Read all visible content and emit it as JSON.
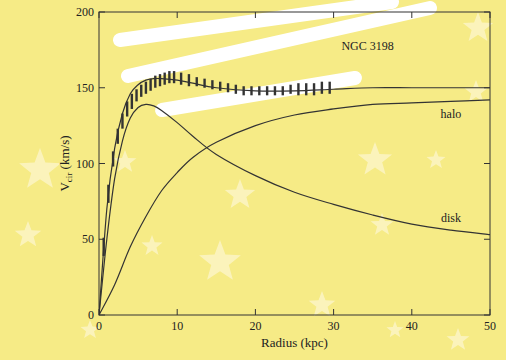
{
  "chart_data": {
    "type": "line",
    "title": "NGC 3198",
    "x_label": "Radius (kpc)",
    "y_label": "Vcir (km/s)",
    "xlim": [
      0,
      50
    ],
    "ylim": [
      0,
      200
    ],
    "xticks": [
      0,
      10,
      20,
      30,
      40,
      50
    ],
    "yticks": [
      0,
      50,
      100,
      150,
      200
    ],
    "grid": false,
    "series": [
      {
        "type": "scatter",
        "marker": "errorbar",
        "color": "#333333",
        "x": [
          0.6,
          1.2,
          1.8,
          2.4,
          3.0,
          3.6,
          4.2,
          4.8,
          5.4,
          6.0,
          6.6,
          7.2,
          7.8,
          8.4,
          9.0,
          9.6,
          10.5,
          11.5,
          12.5,
          13.5,
          14.5,
          15.5,
          16.5,
          17.5,
          18.5,
          19.5,
          20.5,
          21.5,
          22.5,
          23.5,
          24.5,
          25.5,
          26.5,
          27.5,
          28.5,
          29.5
        ],
        "values": [
          45,
          80,
          103,
          118,
          128,
          136,
          141,
          145,
          148,
          150,
          152,
          154,
          155,
          156,
          157,
          157,
          156,
          155,
          154,
          153,
          152,
          151,
          150,
          149,
          148,
          148,
          148,
          148,
          148,
          148,
          149,
          149,
          149,
          149,
          150,
          150
        ],
        "errors": [
          6,
          6,
          5,
          5,
          5,
          5,
          5,
          4,
          4,
          4,
          4,
          4,
          4,
          4,
          4,
          4,
          4,
          4,
          3,
          3,
          3,
          3,
          3,
          3,
          3,
          3,
          3,
          3,
          3,
          3,
          3,
          4,
          4,
          4,
          4,
          4
        ]
      },
      {
        "type": "line",
        "color": "#333333",
        "x": [
          0,
          1,
          2,
          3,
          4,
          5,
          6,
          7,
          8,
          10,
          12,
          15,
          20,
          25,
          30,
          35,
          40,
          45,
          50
        ],
        "values": [
          0,
          70,
          110,
          133,
          146,
          152,
          155,
          156,
          156,
          155,
          153,
          150,
          148,
          148,
          149,
          150,
          150,
          150,
          150
        ]
      },
      {
        "type": "line",
        "name": "halo",
        "color": "#333333",
        "x": [
          0,
          2,
          4,
          6,
          8,
          10,
          12,
          15,
          20,
          25,
          30,
          35,
          40,
          45,
          50
        ],
        "values": [
          0,
          20,
          45,
          65,
          82,
          94,
          104,
          114,
          125,
          132,
          136,
          139,
          140,
          141,
          142
        ]
      },
      {
        "type": "line",
        "name": "disk",
        "color": "#333333",
        "x": [
          0,
          1,
          2,
          3,
          4,
          5,
          6,
          7,
          8,
          10,
          12,
          15,
          20,
          25,
          30,
          35,
          40,
          45,
          50
        ],
        "values": [
          0,
          50,
          90,
          115,
          130,
          137,
          139,
          138,
          135,
          127,
          118,
          106,
          92,
          81,
          73,
          66,
          60,
          56,
          53
        ]
      }
    ]
  }
}
